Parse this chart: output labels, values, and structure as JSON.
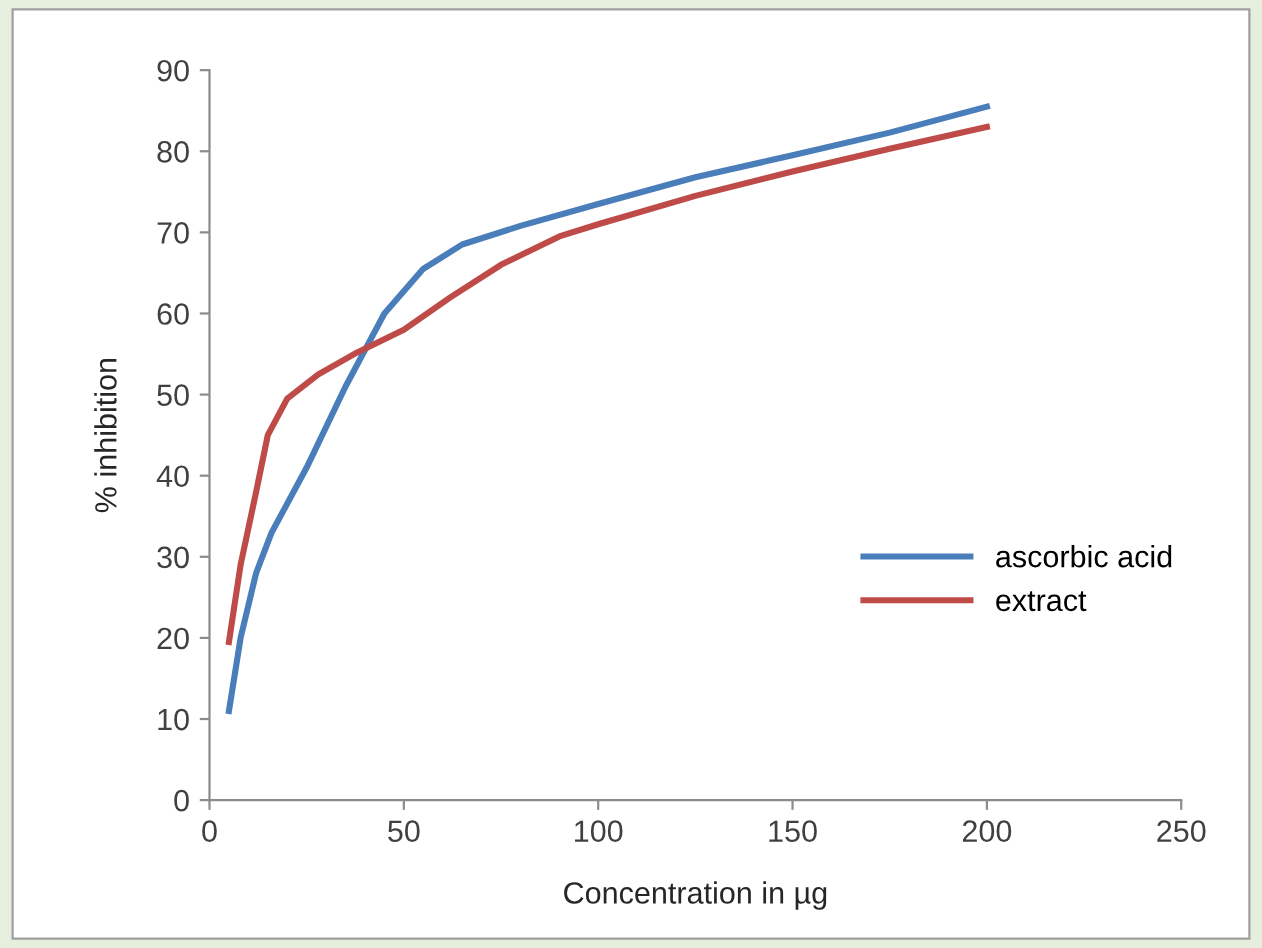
{
  "chart_data": {
    "type": "line",
    "xlabel": "Concentration in µg",
    "ylabel": "% inhibition",
    "xlim": [
      0,
      250
    ],
    "xticks": [
      0,
      50,
      100,
      150,
      200,
      250
    ],
    "ylim": [
      0,
      90
    ],
    "yticks": [
      0,
      10,
      20,
      30,
      40,
      50,
      60,
      70,
      80,
      90
    ],
    "grid": false,
    "legend": "right",
    "marker": "none",
    "line_style": "solid",
    "series": [
      {
        "name": "ascorbic acid",
        "color": "#4a7ebb",
        "x": [
          5,
          8,
          12,
          16,
          25,
          35,
          45,
          55,
          65,
          80,
          100,
          125,
          150,
          175,
          200
        ],
        "values": [
          11,
          20,
          28,
          33,
          41,
          51,
          60,
          65.5,
          68.5,
          70.8,
          73.5,
          76.8,
          79.5,
          82.3,
          85.5
        ]
      },
      {
        "name": "extract",
        "color": "#be4b48",
        "x": [
          5,
          8,
          12,
          15,
          20,
          28,
          38,
          50,
          62,
          75,
          90,
          100,
          125,
          150,
          175,
          200
        ],
        "values": [
          19.5,
          29,
          38,
          45,
          49.5,
          52.5,
          55.2,
          58,
          62,
          66,
          69.5,
          71,
          74.5,
          77.5,
          80.3,
          83
        ]
      }
    ]
  }
}
